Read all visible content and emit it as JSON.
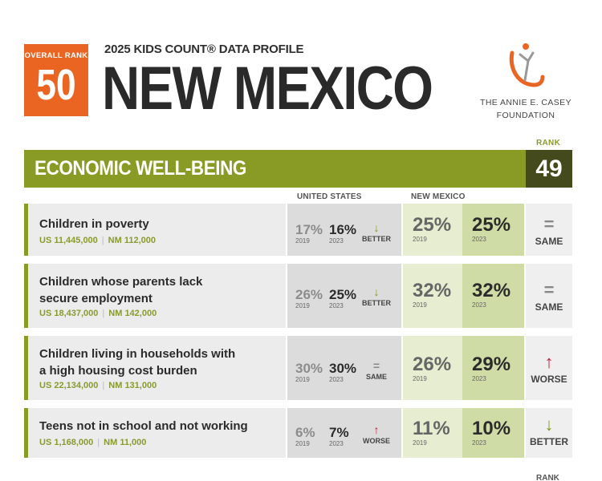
{
  "header": {
    "overall_rank_label": "OVERALL RANK",
    "overall_rank": "50",
    "kicker": "2025 KIDS COUNT® DATA PROFILE",
    "state": "NEW MEXICO",
    "logo_line1": "THE ANNIE E. CASEY",
    "logo_line2": "FOUNDATION",
    "logo_icon": "figure-logo-icon",
    "orange": "#ea6422"
  },
  "section": {
    "rank_label": "RANK",
    "title": "ECONOMIC WELL-BEING",
    "rank": "49",
    "bar_color": "#899a25",
    "rank_color": "#444a1c"
  },
  "columns": {
    "us": "UNITED STATES",
    "state": "NEW MEXICO"
  },
  "indicators": [
    {
      "name": "Children in poverty",
      "us_count_label": "US",
      "us_count": "11,445,000",
      "nm_count_label": "NM",
      "nm_count": "112,000",
      "us_old": "17%",
      "us_old_year": "2019",
      "us_new": "16%",
      "us_new_year": "2023",
      "us_trend": "BETTER",
      "us_trend_arrow": "↓",
      "nm_old": "25%",
      "nm_old_year": "2019",
      "nm_new": "25%",
      "nm_new_year": "2023",
      "nm_trend": "SAME",
      "nm_trend_arrow": "="
    },
    {
      "name_line1": "Children whose parents lack",
      "name_line2": "secure employment",
      "us_count_label": "US",
      "us_count": "18,437,000",
      "nm_count_label": "NM",
      "nm_count": "142,000",
      "us_old": "26%",
      "us_old_year": "2019",
      "us_new": "25%",
      "us_new_year": "2023",
      "us_trend": "BETTER",
      "us_trend_arrow": "↓",
      "nm_old": "32%",
      "nm_old_year": "2019",
      "nm_new": "32%",
      "nm_new_year": "2023",
      "nm_trend": "SAME",
      "nm_trend_arrow": "="
    },
    {
      "name_line1": "Children living in households with",
      "name_line2": "a high housing cost burden",
      "us_count_label": "US",
      "us_count": "22,134,000",
      "nm_count_label": "NM",
      "nm_count": "131,000",
      "us_old": "30%",
      "us_old_year": "2019",
      "us_new": "30%",
      "us_new_year": "2023",
      "us_trend": "SAME",
      "us_trend_arrow": "=",
      "nm_old": "26%",
      "nm_old_year": "2019",
      "nm_new": "29%",
      "nm_new_year": "2023",
      "nm_trend": "WORSE",
      "nm_trend_arrow": "↑"
    },
    {
      "name": "Teens not in school and not working",
      "us_count_label": "US",
      "us_count": "1,168,000",
      "nm_count_label": "NM",
      "nm_count": "11,000",
      "us_old": "6%",
      "us_old_year": "2019",
      "us_new": "7%",
      "us_new_year": "2023",
      "us_trend": "WORSE",
      "us_trend_arrow": "↑",
      "nm_old": "11%",
      "nm_old_year": "2019",
      "nm_new": "10%",
      "nm_new_year": "2023",
      "nm_trend": "BETTER",
      "nm_trend_arrow": "↓"
    }
  ],
  "footer": {
    "rank_label": "RANK"
  },
  "colors": {
    "better": "#7d9a1e",
    "worse": "#c01f2f",
    "same": "#888888"
  }
}
